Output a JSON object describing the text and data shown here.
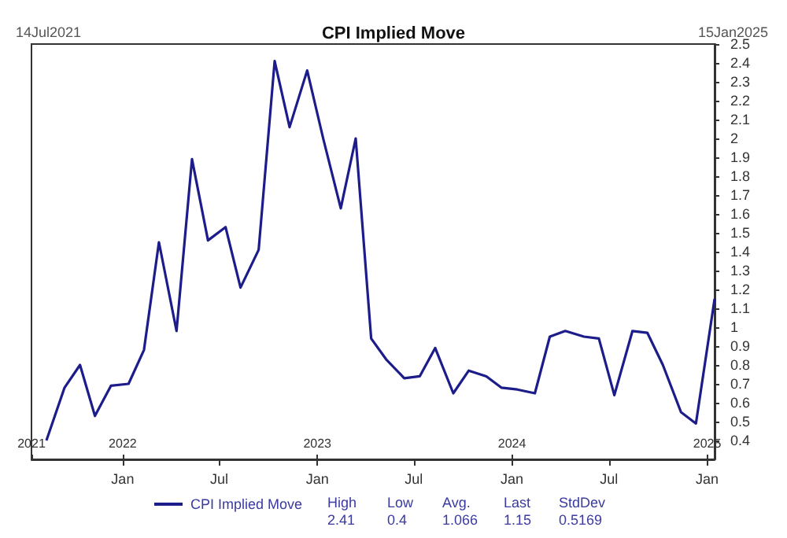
{
  "chart_data": {
    "type": "line",
    "title": "CPI Implied Move",
    "x": [
      "2021-08-11",
      "2021-09-14",
      "2021-10-13",
      "2021-11-10",
      "2021-12-10",
      "2022-01-12",
      "2022-02-10",
      "2022-03-10",
      "2022-04-12",
      "2022-05-11",
      "2022-06-10",
      "2022-07-13",
      "2022-08-10",
      "2022-09-13",
      "2022-10-13",
      "2022-11-10",
      "2022-12-13",
      "2023-01-12",
      "2023-02-14",
      "2023-03-14",
      "2023-04-12",
      "2023-05-10",
      "2023-06-13",
      "2023-07-12",
      "2023-08-10",
      "2023-09-13",
      "2023-10-12",
      "2023-11-14",
      "2023-12-12",
      "2024-01-11",
      "2024-02-13",
      "2024-03-12",
      "2024-04-10",
      "2024-05-15",
      "2024-06-12",
      "2024-07-11",
      "2024-08-14",
      "2024-09-11",
      "2024-10-10",
      "2024-11-13",
      "2024-12-11",
      "2025-01-15"
    ],
    "series": [
      {
        "name": "CPI Implied Move",
        "color": "#1c1c8a",
        "values": [
          0.4,
          0.68,
          0.8,
          0.53,
          0.69,
          0.7,
          0.88,
          1.45,
          0.98,
          1.89,
          1.46,
          1.53,
          1.21,
          1.41,
          2.41,
          2.06,
          2.36,
          2.0,
          1.63,
          2.0,
          0.94,
          0.83,
          0.73,
          0.74,
          0.89,
          0.65,
          0.77,
          0.74,
          0.68,
          0.67,
          0.65,
          0.95,
          0.98,
          0.95,
          0.94,
          0.64,
          0.98,
          0.97,
          0.8,
          0.55,
          0.49,
          1.15
        ]
      }
    ],
    "xlim": [
      "2021-07-14",
      "2025-01-15"
    ],
    "xticks": [
      {
        "value": "2022-01-01",
        "label": "Jan"
      },
      {
        "value": "2022-07-01",
        "label": "Jul"
      },
      {
        "value": "2023-01-01",
        "label": "Jan"
      },
      {
        "value": "2023-07-01",
        "label": "Jul"
      },
      {
        "value": "2024-01-01",
        "label": "Jan"
      },
      {
        "value": "2024-07-01",
        "label": "Jul"
      },
      {
        "value": "2025-01-01",
        "label": "Jan"
      }
    ],
    "x2lim": [
      "2021-07-14",
      "2025-01-15"
    ],
    "x2ticks": [
      {
        "value": "2021-07-14",
        "label": "2021"
      },
      {
        "value": "2022-01-01",
        "label": "2022"
      },
      {
        "value": "2023-01-01",
        "label": "2023"
      },
      {
        "value": "2024-01-01",
        "label": "2024"
      },
      {
        "value": "2025-01-01",
        "label": "2025"
      }
    ],
    "ylim": [
      0.3,
      2.5
    ],
    "yticks": [
      0.4,
      0.5,
      0.6,
      0.7,
      0.8,
      0.9,
      1,
      1.1,
      1.2,
      1.3,
      1.4,
      1.5,
      1.6,
      1.7,
      1.8,
      1.9,
      2,
      2.1,
      2.2,
      2.3,
      2.4,
      2.5
    ],
    "annotations": [
      "14Jul2021",
      "15Jan2025",
      "High\n2.41",
      "Low\n0.4",
      "Avg.\n1.066",
      "Last\n1.15",
      "StdDev\n0.5169"
    ],
    "grid": false,
    "legend": "bottom",
    "marker": "none",
    "line_style": "solid"
  }
}
